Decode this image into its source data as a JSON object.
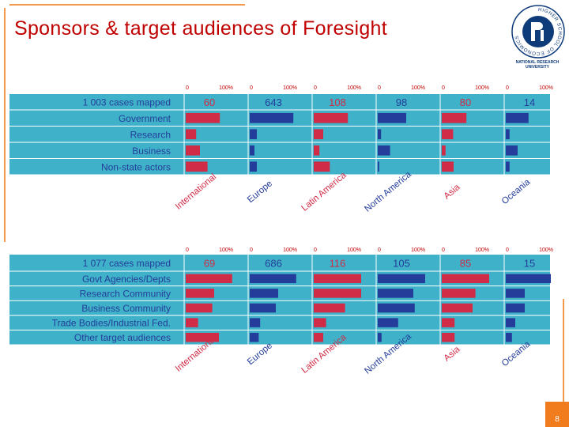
{
  "title": "Sponsors & target audiences of Foresight",
  "logo": {
    "caption": "NATIONAL RESEARCH UNIVERSITY",
    "ring_text": "HIGHER SCHOOL OF ECONOMICS"
  },
  "page_number": "8",
  "colors": {
    "teal": "#3fb2c9",
    "red": "#d02c47",
    "blue": "#243d9a",
    "title": "#c00000",
    "accent": "#f07c1e"
  },
  "chart_data": [
    {
      "type": "bar",
      "cases_label": "1 003 cases mapped",
      "categories": [
        "Government",
        "Research",
        "Business",
        "Non-state actors"
      ],
      "regions": [
        "International",
        "Europe",
        "Latin America",
        "North America",
        "Asia",
        "Oceania"
      ],
      "region_counts": [
        "60",
        "643",
        "108",
        "98",
        "80",
        "14"
      ],
      "xlim": [
        0,
        100
      ],
      "tick_labels": [
        "0",
        "100%"
      ],
      "series": [
        {
          "name": "International",
          "color": "#d02c47",
          "values": [
            72,
            22,
            30,
            46
          ]
        },
        {
          "name": "Europe",
          "color": "#243d9a",
          "values": [
            92,
            15,
            10,
            15
          ]
        },
        {
          "name": "Latin America",
          "color": "#d02c47",
          "values": [
            72,
            20,
            12,
            34
          ]
        },
        {
          "name": "North America",
          "color": "#243d9a",
          "values": [
            60,
            7,
            26,
            3
          ]
        },
        {
          "name": "Asia",
          "color": "#d02c47",
          "values": [
            52,
            24,
            8,
            25
          ]
        },
        {
          "name": "Oceania",
          "color": "#243d9a",
          "values": [
            48,
            8,
            25,
            8
          ]
        }
      ]
    },
    {
      "type": "bar",
      "cases_label": "1 077 cases mapped",
      "categories": [
        "Govt Agencies/Depts",
        "Research Community",
        "Business Community",
        "Trade Bodies/Industrial Fed.",
        "Other target audiences"
      ],
      "regions": [
        "International",
        "Europe",
        "Latin America",
        "North America",
        "Asia",
        "Oceania"
      ],
      "region_counts": [
        "69",
        "686",
        "116",
        "105",
        "85",
        "15"
      ],
      "xlim": [
        0,
        100
      ],
      "tick_labels": [
        "0",
        "100%"
      ],
      "series": [
        {
          "name": "International",
          "color": "#d02c47",
          "values": [
            98,
            60,
            56,
            26,
            70
          ]
        },
        {
          "name": "Europe",
          "color": "#243d9a",
          "values": [
            98,
            60,
            55,
            22,
            19
          ]
        },
        {
          "name": "Latin America",
          "color": "#d02c47",
          "values": [
            100,
            100,
            66,
            26,
            20
          ]
        },
        {
          "name": "North America",
          "color": "#243d9a",
          "values": [
            100,
            75,
            78,
            43,
            8
          ]
        },
        {
          "name": "Asia",
          "color": "#d02c47",
          "values": [
            100,
            71,
            65,
            27,
            27
          ]
        },
        {
          "name": "Oceania",
          "color": "#243d9a",
          "values": [
            95,
            40,
            40,
            20,
            13
          ]
        }
      ]
    }
  ]
}
